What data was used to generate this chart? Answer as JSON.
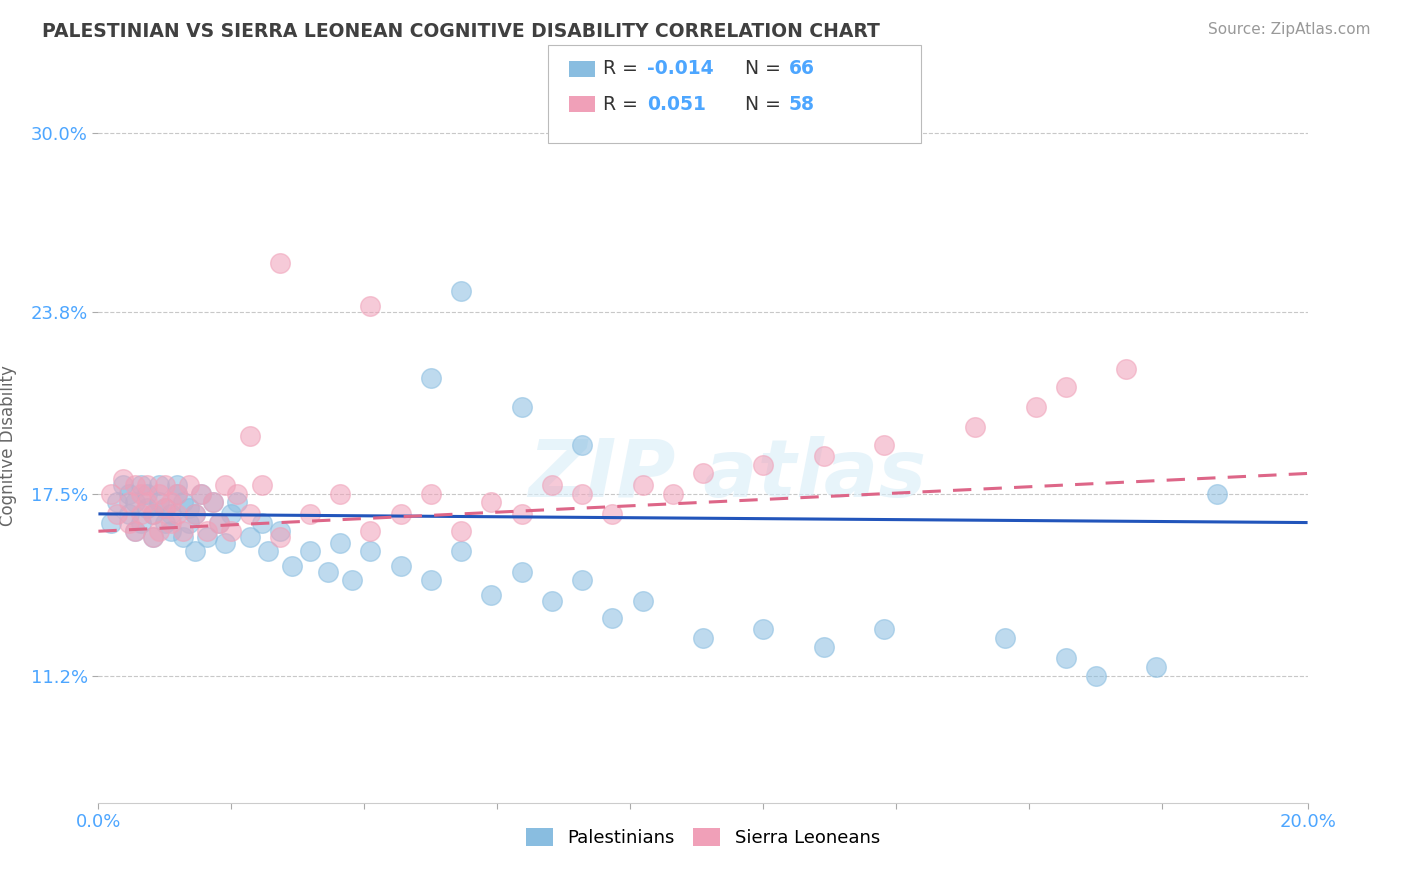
{
  "title": "PALESTINIAN VS SIERRA LEONEAN COGNITIVE DISABILITY CORRELATION CHART",
  "source": "Source: ZipAtlas.com",
  "ylabel": "Cognitive Disability",
  "xlim": [
    0.0,
    0.2
  ],
  "ylim": [
    0.068,
    0.315
  ],
  "xtick_labels": [
    "0.0%",
    "",
    "",
    "",
    "",
    "",
    "",
    "",
    "",
    "20.0%"
  ],
  "xtick_positions": [
    0.0,
    0.022,
    0.044,
    0.066,
    0.088,
    0.11,
    0.132,
    0.154,
    0.176,
    0.2
  ],
  "ytick_labels": [
    "11.2%",
    "17.5%",
    "23.8%",
    "30.0%"
  ],
  "ytick_positions": [
    0.112,
    0.175,
    0.238,
    0.3
  ],
  "grid_color": "#c8c8c8",
  "background_color": "#ffffff",
  "title_color": "#404040",
  "axis_color": "#4da6ff",
  "blue_dot_color": "#89bde0",
  "pink_dot_color": "#f0a0b8",
  "blue_line_color": "#2255bb",
  "pink_line_color": "#dd6688",
  "legend_label1": "Palestinians",
  "legend_label2": "Sierra Leoneans",
  "palestinians_x": [
    0.002,
    0.003,
    0.004,
    0.005,
    0.005,
    0.006,
    0.006,
    0.007,
    0.007,
    0.008,
    0.008,
    0.009,
    0.009,
    0.01,
    0.01,
    0.011,
    0.011,
    0.012,
    0.012,
    0.013,
    0.013,
    0.014,
    0.014,
    0.015,
    0.015,
    0.016,
    0.016,
    0.017,
    0.018,
    0.019,
    0.02,
    0.021,
    0.022,
    0.023,
    0.025,
    0.027,
    0.028,
    0.03,
    0.032,
    0.035,
    0.038,
    0.04,
    0.042,
    0.045,
    0.05,
    0.055,
    0.06,
    0.065,
    0.07,
    0.075,
    0.08,
    0.085,
    0.09,
    0.1,
    0.11,
    0.12,
    0.13,
    0.15,
    0.16,
    0.165,
    0.175,
    0.185,
    0.06,
    0.055,
    0.07,
    0.08
  ],
  "palestinians_y": [
    0.165,
    0.172,
    0.178,
    0.168,
    0.175,
    0.162,
    0.172,
    0.178,
    0.165,
    0.17,
    0.175,
    0.16,
    0.168,
    0.172,
    0.178,
    0.165,
    0.17,
    0.162,
    0.168,
    0.175,
    0.178,
    0.16,
    0.172,
    0.165,
    0.17,
    0.155,
    0.168,
    0.175,
    0.16,
    0.172,
    0.165,
    0.158,
    0.168,
    0.172,
    0.16,
    0.165,
    0.155,
    0.162,
    0.15,
    0.155,
    0.148,
    0.158,
    0.145,
    0.155,
    0.15,
    0.145,
    0.155,
    0.14,
    0.148,
    0.138,
    0.145,
    0.132,
    0.138,
    0.125,
    0.128,
    0.122,
    0.128,
    0.125,
    0.118,
    0.112,
    0.115,
    0.175,
    0.245,
    0.215,
    0.205,
    0.192
  ],
  "sierraleoneans_x": [
    0.002,
    0.003,
    0.004,
    0.005,
    0.005,
    0.006,
    0.006,
    0.007,
    0.007,
    0.008,
    0.008,
    0.009,
    0.009,
    0.01,
    0.01,
    0.011,
    0.011,
    0.012,
    0.012,
    0.013,
    0.013,
    0.014,
    0.015,
    0.016,
    0.017,
    0.018,
    0.019,
    0.02,
    0.021,
    0.022,
    0.023,
    0.025,
    0.027,
    0.03,
    0.035,
    0.04,
    0.045,
    0.05,
    0.055,
    0.06,
    0.065,
    0.07,
    0.075,
    0.08,
    0.085,
    0.09,
    0.095,
    0.1,
    0.11,
    0.12,
    0.13,
    0.145,
    0.155,
    0.16,
    0.17,
    0.045,
    0.03,
    0.025
  ],
  "sierraleoneans_y": [
    0.175,
    0.168,
    0.18,
    0.172,
    0.165,
    0.178,
    0.162,
    0.175,
    0.168,
    0.172,
    0.178,
    0.16,
    0.168,
    0.175,
    0.162,
    0.17,
    0.178,
    0.165,
    0.172,
    0.168,
    0.175,
    0.162,
    0.178,
    0.168,
    0.175,
    0.162,
    0.172,
    0.165,
    0.178,
    0.162,
    0.175,
    0.168,
    0.178,
    0.16,
    0.168,
    0.175,
    0.162,
    0.168,
    0.175,
    0.162,
    0.172,
    0.168,
    0.178,
    0.175,
    0.168,
    0.178,
    0.175,
    0.182,
    0.185,
    0.188,
    0.192,
    0.198,
    0.205,
    0.212,
    0.218,
    0.24,
    0.255,
    0.195
  ],
  "blue_line_y_start": 0.168,
  "blue_line_y_end": 0.165,
  "pink_line_y_start": 0.162,
  "pink_line_y_end": 0.182
}
